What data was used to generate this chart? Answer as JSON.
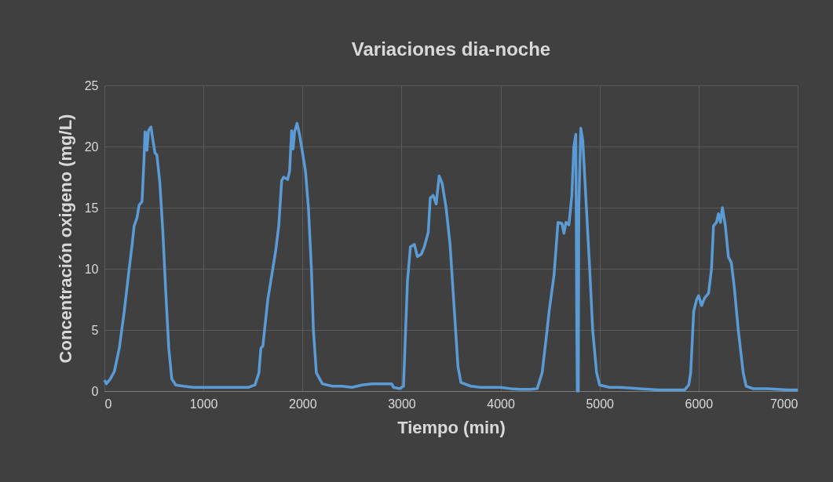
{
  "chart_data": {
    "type": "line",
    "title": "Variaciones dia-noche",
    "xlabel": "Tiempo (min)",
    "ylabel": "Concentración oxigeno (mg/L)",
    "xlim": [
      0,
      7000
    ],
    "xticks": [
      0,
      1000,
      2000,
      3000,
      4000,
      5000,
      6000,
      7000
    ],
    "ylim": [
      0,
      25
    ],
    "yticks": [
      0,
      5,
      10,
      15,
      20,
      25
    ],
    "grid": true,
    "line_style": "solid",
    "marker": "none",
    "series": [
      {
        "color": "#5b9bd5",
        "x": [
          0,
          20,
          60,
          100,
          150,
          200,
          250,
          280,
          300,
          330,
          350,
          380,
          400,
          410,
          425,
          430,
          445,
          470,
          490,
          510,
          530,
          560,
          590,
          620,
          650,
          680,
          720,
          800,
          900,
          1000,
          1100,
          1200,
          1300,
          1450,
          1520,
          1560,
          1580,
          1600,
          1650,
          1700,
          1730,
          1760,
          1790,
          1810,
          1850,
          1870,
          1890,
          1905,
          1920,
          1945,
          1970,
          2000,
          2030,
          2060,
          2090,
          2110,
          2140,
          2200,
          2300,
          2400,
          2500,
          2600,
          2700,
          2800,
          2900,
          2920,
          2980,
          3020,
          3060,
          3090,
          3130,
          3160,
          3200,
          3230,
          3270,
          3290,
          3320,
          3350,
          3380,
          3410,
          3450,
          3490,
          3530,
          3570,
          3600,
          3700,
          3800,
          3900,
          4000,
          4100,
          4200,
          4300,
          4370,
          4420,
          4470,
          4490,
          4540,
          4580,
          4620,
          4640,
          4660,
          4690,
          4720,
          4740,
          4760,
          4770,
          4775,
          4785,
          4790,
          4810,
          4830,
          4860,
          4900,
          4930,
          4970,
          5000,
          5100,
          5200,
          5300,
          5400,
          5500,
          5600,
          5700,
          5800,
          5860,
          5900,
          5920,
          5950,
          5980,
          6000,
          6030,
          6060,
          6100,
          6130,
          6150,
          6180,
          6200,
          6220,
          6240,
          6270,
          6300,
          6330,
          6360,
          6400,
          6450,
          6480,
          6550,
          6700,
          6800,
          6900,
          7000
        ],
        "values": [
          0.9,
          0.6,
          1.0,
          1.6,
          3.5,
          6.5,
          10,
          12,
          13.5,
          14.2,
          15.2,
          15.5,
          19,
          21.2,
          21.0,
          19.7,
          21.3,
          21.6,
          20.5,
          19.5,
          19.3,
          17,
          13,
          8,
          3.5,
          1,
          0.5,
          0.4,
          0.3,
          0.3,
          0.3,
          0.3,
          0.3,
          0.3,
          0.5,
          1.5,
          3.5,
          3.7,
          7.5,
          10,
          11.5,
          13.5,
          17.2,
          17.5,
          17.3,
          18,
          21.3,
          19.8,
          21.2,
          21.9,
          21,
          19.5,
          18,
          15,
          10,
          5,
          1.5,
          0.6,
          0.4,
          0.4,
          0.3,
          0.5,
          0.6,
          0.6,
          0.6,
          0.3,
          0.2,
          0.4,
          9,
          11.8,
          12.0,
          11.0,
          11.2,
          11.8,
          13,
          15.8,
          16.0,
          15.3,
          17.6,
          17.0,
          15,
          12,
          7,
          2,
          0.7,
          0.4,
          0.3,
          0.3,
          0.3,
          0.2,
          0.15,
          0.15,
          0.2,
          1.5,
          5,
          6.5,
          9.5,
          13.8,
          13.7,
          12.9,
          13.8,
          13.6,
          16,
          20,
          21,
          5,
          0,
          0,
          15,
          21.5,
          20.5,
          16,
          10,
          5,
          1.5,
          0.5,
          0.3,
          0.3,
          0.25,
          0.2,
          0.15,
          0.1,
          0.1,
          0.1,
          0.1,
          0.5,
          1.5,
          6.5,
          7.5,
          7.8,
          7.0,
          7.6,
          8.0,
          10,
          13.5,
          13.8,
          14.5,
          13.8,
          15.0,
          13.5,
          11,
          10.5,
          8.5,
          5,
          1.5,
          0.4,
          0.2,
          0.2,
          0.15,
          0.1,
          0.1
        ]
      }
    ]
  }
}
